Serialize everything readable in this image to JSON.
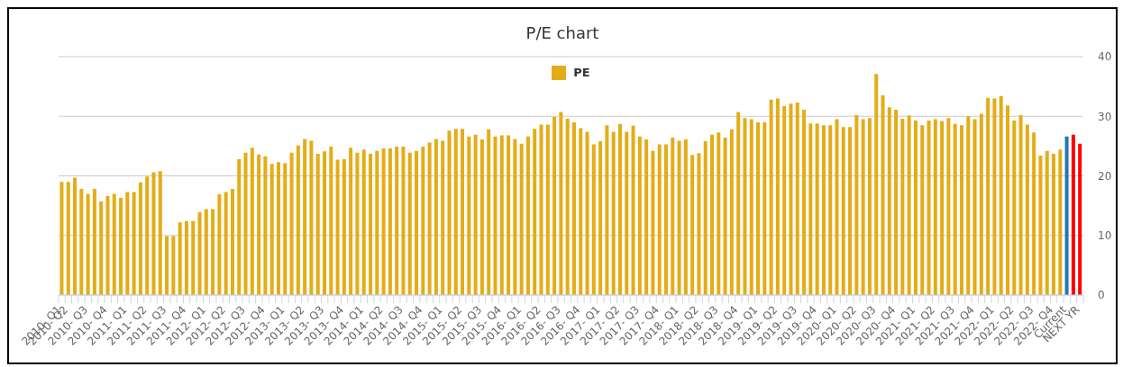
{
  "chart_data": {
    "type": "bar",
    "title": "P/E chart",
    "legend": "top",
    "grid": "y",
    "ylim": [
      0,
      40
    ],
    "yticks": [
      0,
      10,
      20,
      30,
      40
    ],
    "categories": [
      "2010- Q1",
      "2010- Q2",
      null,
      null,
      "2010- Q3",
      null,
      null,
      "2010- Q4",
      null,
      null,
      "2011- Q1",
      null,
      null,
      "2011- Q2",
      null,
      null,
      "2011- Q3",
      null,
      null,
      "2011- Q4",
      null,
      null,
      "2012- Q1",
      null,
      null,
      "2012- Q2",
      null,
      null,
      "2012- Q3",
      null,
      null,
      "2012- Q4",
      null,
      null,
      "2013- Q1",
      null,
      null,
      "2013- Q2",
      null,
      null,
      "2013- Q3",
      null,
      null,
      "2013- Q4",
      null,
      null,
      "2014- Q1",
      null,
      null,
      "2014- Q2",
      null,
      null,
      "2014- Q3",
      null,
      null,
      "2014- Q4",
      null,
      null,
      "2015- Q1",
      null,
      null,
      "2015- Q2",
      null,
      null,
      "2015- Q3",
      null,
      null,
      "2015- Q4",
      null,
      null,
      "2016- Q1",
      null,
      null,
      "2016- Q2",
      null,
      null,
      "2016- Q3",
      null,
      null,
      "2016- Q4",
      null,
      null,
      "2017- Q1",
      null,
      null,
      "2017- Q2",
      null,
      null,
      "2017- Q3",
      null,
      null,
      "2017- Q4",
      null,
      null,
      "2018- Q1",
      null,
      null,
      "2018- Q2",
      null,
      null,
      "2018- Q3",
      null,
      null,
      "2018- Q4",
      null,
      null,
      "2019- Q1",
      null,
      null,
      "2019- Q2",
      null,
      null,
      "2019- Q3",
      null,
      null,
      "2019- Q4",
      null,
      null,
      "2020- Q1",
      null,
      null,
      "2020- Q2",
      null,
      null,
      "2020- Q3",
      null,
      null,
      "2020- Q4",
      null,
      null,
      "2021- Q1",
      null,
      null,
      "2021- Q2",
      null,
      null,
      "2021- Q3",
      null,
      null,
      "2021- Q4",
      null,
      null,
      "2022- Q1",
      null,
      null,
      "2022- Q2",
      null,
      null,
      "2022- Q3",
      null,
      null,
      "2022- Q4",
      null,
      "Current",
      null,
      "NEXT YR"
    ],
    "series": [
      {
        "name": "PE",
        "color": "#e4ac17",
        "colors": [
          "#e4ac17",
          "#e4ac17",
          "#e4ac17",
          "#e4ac17",
          "#e4ac17",
          "#e4ac17",
          "#e4ac17",
          "#e4ac17",
          "#e4ac17",
          "#e4ac17",
          "#e4ac17",
          "#e4ac17",
          "#e4ac17",
          "#e4ac17",
          "#e4ac17",
          "#e4ac17",
          "#e4ac17",
          "#e4ac17",
          "#e4ac17",
          "#e4ac17",
          "#e4ac17",
          "#e4ac17",
          "#e4ac17",
          "#e4ac17",
          "#e4ac17",
          "#e4ac17",
          "#e4ac17",
          "#e4ac17",
          "#e4ac17",
          "#e4ac17",
          "#e4ac17",
          "#e4ac17",
          "#e4ac17",
          "#e4ac17",
          "#e4ac17",
          "#e4ac17",
          "#e4ac17",
          "#e4ac17",
          "#e4ac17",
          "#e4ac17",
          "#e4ac17",
          "#e4ac17",
          "#e4ac17",
          "#e4ac17",
          "#e4ac17",
          "#e4ac17",
          "#e4ac17",
          "#e4ac17",
          "#e4ac17",
          "#e4ac17",
          "#e4ac17",
          "#e4ac17",
          "#e4ac17",
          "#e4ac17",
          "#e4ac17",
          "#e4ac17",
          "#e4ac17",
          "#e4ac17",
          "#e4ac17",
          "#e4ac17",
          "#e4ac17",
          "#e4ac17",
          "#e4ac17",
          "#e4ac17",
          "#e4ac17",
          "#e4ac17",
          "#e4ac17",
          "#e4ac17",
          "#e4ac17",
          "#e4ac17",
          "#e4ac17",
          "#e4ac17",
          "#e4ac17",
          "#e4ac17",
          "#e4ac17",
          "#e4ac17",
          "#e4ac17",
          "#e4ac17",
          "#e4ac17",
          "#e4ac17",
          "#e4ac17",
          "#e4ac17",
          "#e4ac17",
          "#e4ac17",
          "#e4ac17",
          "#e4ac17",
          "#e4ac17",
          "#e4ac17",
          "#e4ac17",
          "#e4ac17",
          "#e4ac17",
          "#e4ac17",
          "#e4ac17",
          "#e4ac17",
          "#e4ac17",
          "#e4ac17",
          "#e4ac17",
          "#e4ac17",
          "#e4ac17",
          "#e4ac17",
          "#e4ac17",
          "#e4ac17",
          "#e4ac17",
          "#e4ac17",
          "#e4ac17",
          "#e4ac17",
          "#e4ac17",
          "#e4ac17",
          "#e4ac17",
          "#e4ac17",
          "#e4ac17",
          "#e4ac17",
          "#e4ac17",
          "#e4ac17",
          "#e4ac17",
          "#e4ac17",
          "#e4ac17",
          "#e4ac17",
          "#e4ac17",
          "#e4ac17",
          "#e4ac17",
          "#e4ac17",
          "#e4ac17",
          "#e4ac17",
          "#e4ac17",
          "#e4ac17",
          "#e4ac17",
          "#e4ac17",
          "#e4ac17",
          "#e4ac17",
          "#e4ac17",
          "#e4ac17",
          "#e4ac17",
          "#e4ac17",
          "#e4ac17",
          "#e4ac17",
          "#e4ac17",
          "#e4ac17",
          "#e4ac17",
          "#e4ac17",
          "#e4ac17",
          "#e4ac17",
          "#e4ac17",
          "#e4ac17",
          "#e4ac17",
          "#e4ac17",
          "#e4ac17",
          "#e4ac17",
          "#e4ac17",
          "#e4ac17",
          "#e4ac17",
          "#e4ac17",
          "#e4ac17",
          "#1f78b4",
          "#ff0000",
          "#ff0000"
        ],
        "values": [
          19.0,
          19.0,
          19.7,
          17.8,
          17.0,
          17.8,
          15.7,
          16.6,
          17.0,
          16.3,
          17.3,
          17.3,
          18.9,
          19.9,
          20.6,
          20.8,
          9.9,
          9.9,
          12.2,
          12.4,
          12.4,
          13.9,
          14.4,
          14.4,
          16.9,
          17.3,
          17.8,
          22.8,
          23.9,
          24.7,
          23.6,
          23.3,
          22.0,
          22.3,
          22.1,
          23.9,
          25.1,
          26.2,
          25.9,
          23.7,
          24.1,
          24.9,
          22.7,
          22.8,
          24.7,
          23.9,
          24.4,
          23.7,
          24.2,
          24.6,
          24.6,
          24.9,
          24.9,
          23.9,
          24.2,
          24.9,
          25.6,
          26.2,
          25.9,
          27.6,
          27.9,
          27.9,
          26.6,
          26.9,
          26.1,
          27.8,
          26.6,
          26.8,
          26.8,
          26.2,
          25.4,
          26.6,
          27.9,
          28.6,
          28.6,
          29.9,
          30.7,
          29.6,
          29.0,
          28.0,
          27.4,
          25.3,
          25.8,
          28.5,
          27.4,
          28.7,
          27.4,
          28.4,
          26.6,
          26.1,
          24.2,
          25.3,
          25.3,
          26.4,
          25.9,
          26.1,
          23.5,
          23.8,
          25.8,
          26.9,
          27.3,
          26.4,
          27.8,
          30.7,
          29.7,
          29.5,
          29.0,
          29.0,
          32.8,
          33.0,
          31.7,
          32.1,
          32.3,
          31.1,
          28.8,
          28.8,
          28.5,
          28.5,
          29.5,
          28.2,
          28.2,
          30.2,
          29.5,
          29.7,
          37.1,
          33.5,
          31.5,
          31.1,
          29.6,
          30.1,
          29.3,
          28.5,
          29.3,
          29.5,
          29.2,
          29.7,
          28.7,
          28.5,
          30.0,
          29.5,
          30.4,
          33.1,
          33.0,
          33.4,
          31.8,
          29.3,
          30.2,
          28.6,
          27.3,
          23.4,
          24.2,
          23.7,
          24.4,
          26.6,
          26.9,
          25.4
        ]
      }
    ]
  }
}
